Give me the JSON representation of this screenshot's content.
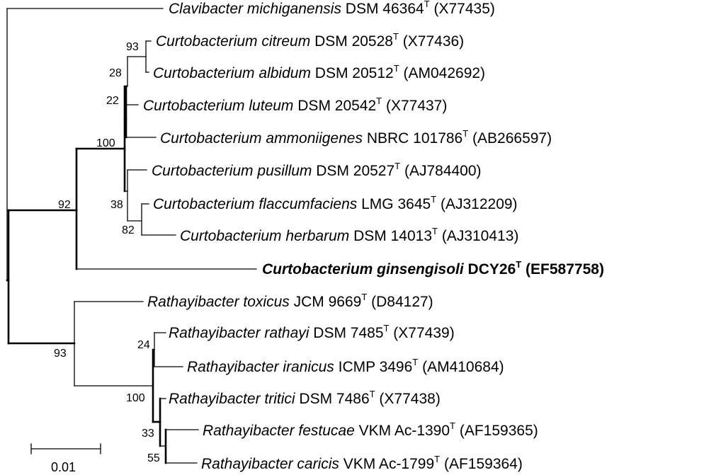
{
  "taxa": [
    {
      "id": "clavibacter",
      "species": "Clavibacter michiganensis",
      "strain": "DSM 46364",
      "superscript": "T",
      "accession": "(X77435)",
      "bold": false
    },
    {
      "id": "citreum",
      "species": "Curtobacterium citreum",
      "strain": "DSM 20528",
      "superscript": "T",
      "accession": "(X77436)",
      "bold": false
    },
    {
      "id": "albidum",
      "species": "Curtobacterium albidum",
      "strain": "DSM 20512",
      "superscript": "T",
      "accession": "(AM042692)",
      "bold": false
    },
    {
      "id": "luteum",
      "species": "Curtobacterium luteum",
      "strain": "DSM 20542",
      "superscript": "T",
      "accession": "(X77437)",
      "bold": false
    },
    {
      "id": "ammoniigenes",
      "species": "Curtobacterium ammoniigenes",
      "strain": "NBRC 101786",
      "superscript": "T",
      "accession": "(AB266597)",
      "bold": false
    },
    {
      "id": "pusillum",
      "species": "Curtobacterium pusillum",
      "strain": "DSM 20527",
      "superscript": "T",
      "accession": "(AJ784400)",
      "bold": false
    },
    {
      "id": "flaccumfaciens",
      "species": "Curtobacterium flaccumfaciens",
      "strain": "LMG 3645",
      "superscript": "T",
      "accession": "(AJ312209)",
      "bold": false
    },
    {
      "id": "herbarum",
      "species": "Curtobacterium herbarum",
      "strain": "DSM 14013",
      "superscript": "T",
      "accession": "(AJ310413)",
      "bold": false
    },
    {
      "id": "ginsengisoli",
      "species": "Curtobacterium ginsengisoli",
      "strain": "DCY26",
      "superscript": "T",
      "accession": "(EF587758)",
      "bold": true
    },
    {
      "id": "toxicus",
      "species": "Rathayibacter toxicus",
      "strain": "JCM 9669",
      "superscript": "T",
      "accession": "(D84127)",
      "bold": false
    },
    {
      "id": "rathayi",
      "species": "Rathayibacter rathayi",
      "strain": "DSM 7485",
      "superscript": "T",
      "accession": "(X77439)",
      "bold": false
    },
    {
      "id": "iranicus",
      "species": "Rathayibacter iranicus",
      "strain": "ICMP 3496",
      "superscript": "T",
      "accession": "(AM410684)",
      "bold": false
    },
    {
      "id": "tritici",
      "species": "Rathayibacter tritici",
      "strain": "DSM 7486",
      "superscript": "T",
      "accession": "(X77438)",
      "bold": false
    },
    {
      "id": "festucae",
      "species": "Rathayibacter festucae",
      "strain": "VKM Ac-1390",
      "superscript": "T",
      "accession": "(AF159365)",
      "bold": false
    },
    {
      "id": "caricis",
      "species": "Rathayibacter caricis",
      "strain": "VKM Ac-1799",
      "superscript": "T",
      "accession": "(AF159364)",
      "bold": false
    }
  ],
  "bootstrap": [
    {
      "node": "citreum-albidum",
      "value": "93"
    },
    {
      "node": "citreum-albidum-parent",
      "value": "28"
    },
    {
      "node": "luteum-node",
      "value": "22"
    },
    {
      "node": "curtobacterium-core",
      "value": "100"
    },
    {
      "node": "curtobacterium-ginsengisoli",
      "value": "92"
    },
    {
      "node": "pusillum-node",
      "value": "38"
    },
    {
      "node": "flaccumfaciens-herbarum",
      "value": "82"
    },
    {
      "node": "rathayibacter-clade",
      "value": "93"
    },
    {
      "node": "rathayi-node",
      "value": "24"
    },
    {
      "node": "rathayibacter-core",
      "value": "100"
    },
    {
      "node": "tritici-node",
      "value": "33"
    },
    {
      "node": "festucae-caricis",
      "value": "55"
    }
  ],
  "scale_bar": {
    "label": "0.01"
  }
}
